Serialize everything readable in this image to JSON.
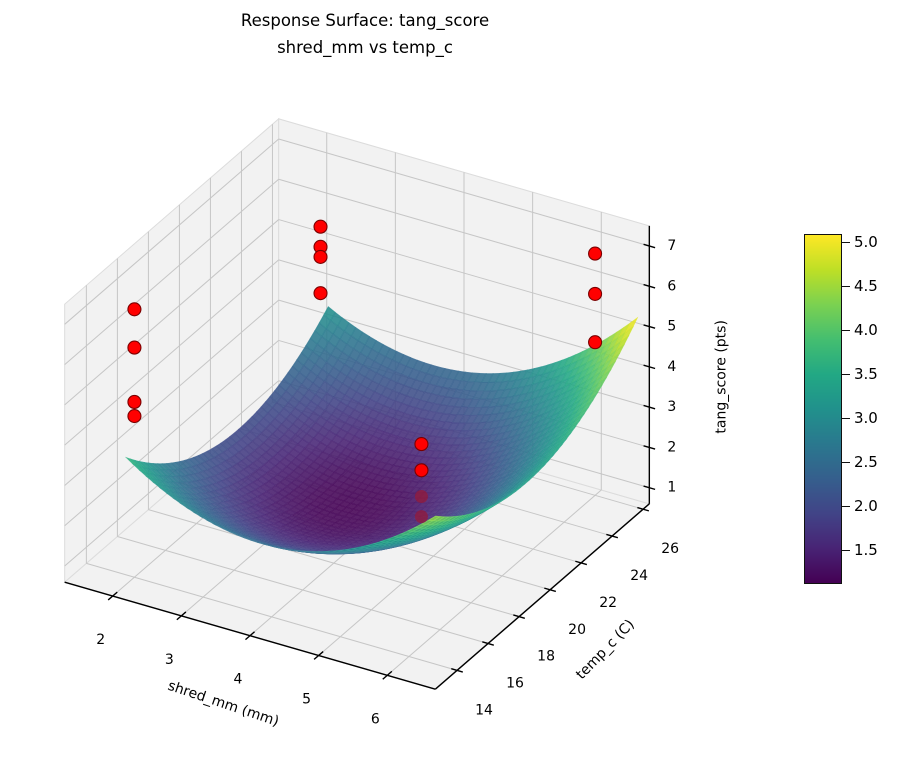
{
  "chart_data": {
    "type": "surface3d",
    "title": {
      "line1": "Response Surface: tang_score",
      "line2": "shred_mm vs temp_c"
    },
    "view": {
      "elev": 30,
      "azim": -60
    },
    "axes": {
      "x": {
        "label": "shred_mm (mm)",
        "ticks": [
          2,
          3,
          4,
          5,
          6
        ],
        "lim": [
          1.3,
          6.7
        ]
      },
      "y": {
        "label": "temp_c (C)",
        "ticks": [
          14,
          16,
          18,
          20,
          22,
          24,
          26
        ],
        "lim": [
          12.6,
          26.4
        ]
      },
      "z": {
        "label": "tang_score (pts)",
        "ticks": [
          1,
          2,
          3,
          4,
          5,
          6,
          7
        ],
        "lim": [
          0.6,
          7.5
        ]
      }
    },
    "surface": {
      "x_range": [
        2.0,
        6.5
      ],
      "y_range": [
        13.5,
        26.5
      ],
      "grid_n": 45,
      "model": {
        "c": 1.2,
        "x0": 4.25,
        "y0": 20,
        "a": 0.3,
        "b": 0.033,
        "d": 0.02,
        "p": 0.3
      },
      "alpha": 0.88,
      "mesh_color": "rgba(255,255,255,0.14)"
    },
    "scatter": {
      "color": "#ff0000",
      "edge_color": "#7a0000",
      "occluded_color": "rgba(150,25,55,0.72)",
      "radius_px": 6.5,
      "points": [
        {
          "x": 2.0,
          "y": 14.0,
          "z": 7.25
        },
        {
          "x": 2.0,
          "y": 14.0,
          "z": 6.3
        },
        {
          "x": 2.0,
          "y": 14.0,
          "z": 4.95
        },
        {
          "x": 2.0,
          "y": 14.0,
          "z": 4.6
        },
        {
          "x": 2.0,
          "y": 26.0,
          "z": 5.3
        },
        {
          "x": 2.0,
          "y": 26.0,
          "z": 4.8
        },
        {
          "x": 2.0,
          "y": 26.0,
          "z": 4.55
        },
        {
          "x": 2.0,
          "y": 26.0,
          "z": 3.65
        },
        {
          "x": 6.0,
          "y": 26.0,
          "z": 6.6
        },
        {
          "x": 6.0,
          "y": 26.0,
          "z": 5.6
        },
        {
          "x": 6.0,
          "y": 26.0,
          "z": 4.4
        },
        {
          "x": 4.6,
          "y": 21.0,
          "z": 2.85
        },
        {
          "x": 4.6,
          "y": 21.0,
          "z": 2.2
        },
        {
          "x": 4.6,
          "y": 21.0,
          "z": 1.55
        },
        {
          "x": 4.6,
          "y": 21.0,
          "z": 1.05
        }
      ]
    },
    "colormap": {
      "name": "viridis",
      "stops": [
        [
          68,
          1,
          84
        ],
        [
          72,
          36,
          117
        ],
        [
          65,
          68,
          135
        ],
        [
          53,
          95,
          141
        ],
        [
          42,
          120,
          142
        ],
        [
          33,
          145,
          140
        ],
        [
          34,
          168,
          132
        ],
        [
          68,
          190,
          112
        ],
        [
          122,
          209,
          81
        ],
        [
          189,
          223,
          38
        ],
        [
          253,
          231,
          37
        ]
      ]
    },
    "colorbar": {
      "ticks": [
        1.5,
        2.0,
        2.5,
        3.0,
        3.5,
        4.0,
        4.5,
        5.0
      ]
    },
    "colors": {
      "pane": "#f2f2f2",
      "pane_edge": "#dcdcdc",
      "grid": "#c6c6c6",
      "spine": "#000000",
      "tick_label": "#000000"
    }
  }
}
